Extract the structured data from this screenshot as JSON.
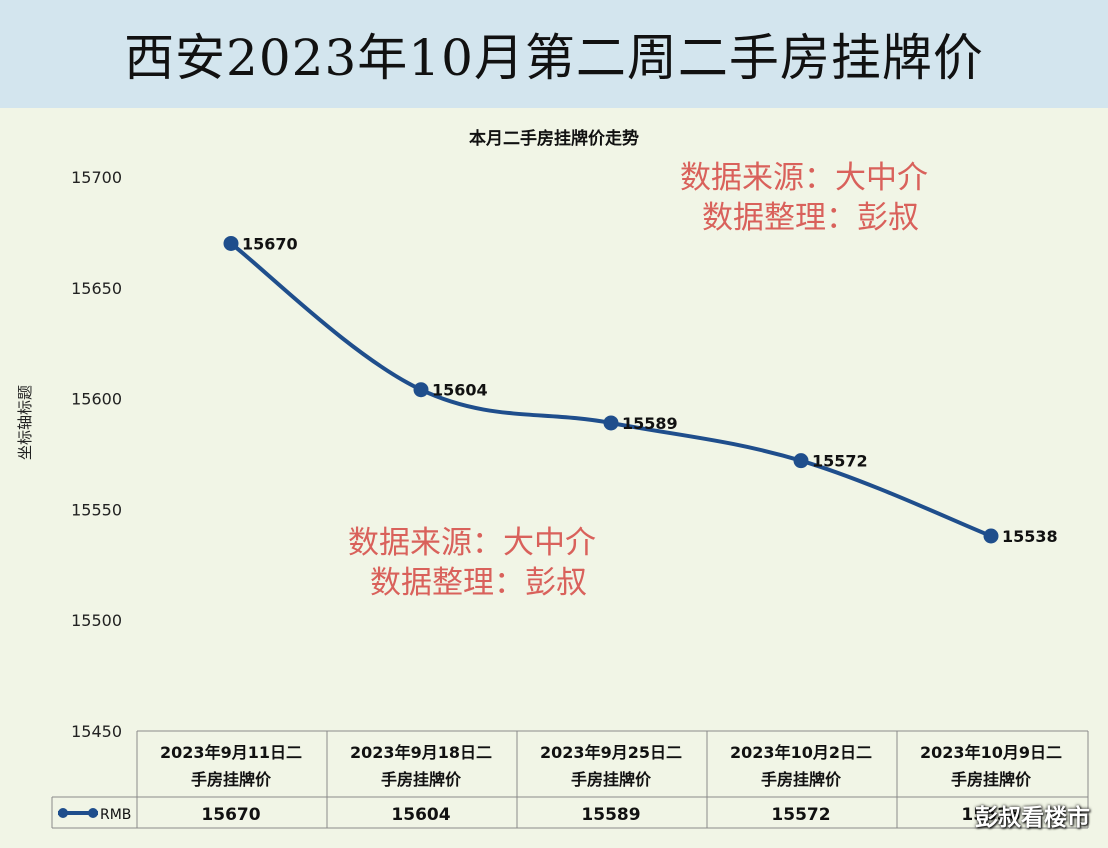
{
  "header": {
    "title": "西安2023年10月第二周二手房挂牌价"
  },
  "watermarks": [
    {
      "line1": "数据来源：大中介",
      "line2": "数据整理：彭叔"
    },
    {
      "line1": "数据来源：大中介",
      "line2": "数据整理：彭叔"
    }
  ],
  "brand": "彭叔看楼市",
  "colors": {
    "line": "#1f4e8c",
    "header_bg": "#d3e5ee",
    "plot_bg": "#f1f5e6",
    "watermark": "#d9615b"
  },
  "chart_data": {
    "type": "line",
    "title": "本月二手房挂牌价走势",
    "ylabel": "坐标轴标题",
    "xlabel": "",
    "ylim": [
      15450,
      15700
    ],
    "yticks": [
      15700,
      15650,
      15600,
      15550,
      15500,
      15450
    ],
    "categories": [
      "2023年9月11日二手房挂牌价",
      "2023年9月18日二手房挂牌价",
      "2023年9月25日二手房挂牌价",
      "2023年10月2日二手房挂牌价",
      "2023年10月9日二手房挂牌价"
    ],
    "category_lines": [
      [
        "2023年9月11日二",
        "手房挂牌价"
      ],
      [
        "2023年9月18日二",
        "手房挂牌价"
      ],
      [
        "2023年9月25日二",
        "手房挂牌价"
      ],
      [
        "2023年10月2日二",
        "手房挂牌价"
      ],
      [
        "2023年10月9日二",
        "手房挂牌价"
      ]
    ],
    "series": [
      {
        "name": "RMB",
        "values": [
          15670,
          15604,
          15589,
          15572,
          15538
        ]
      }
    ],
    "data_table": true
  }
}
